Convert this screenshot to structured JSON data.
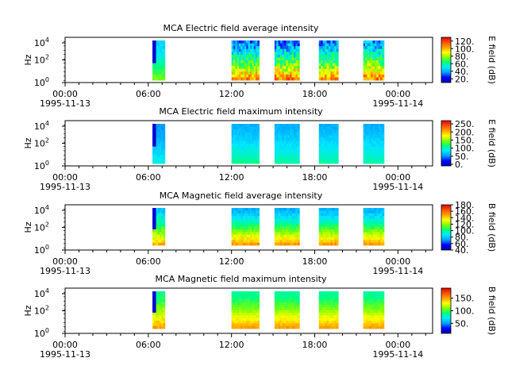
{
  "figure": {
    "x_tick_labels": [
      "00:00",
      "06:00",
      "12:00",
      "18:00",
      "00:00"
    ],
    "x_tick_hours": [
      0,
      6,
      12,
      18,
      24
    ],
    "x_date_labels": [
      {
        "at_hour": 0,
        "text": "1995-11-13"
      },
      {
        "at_hour": 24,
        "text": "1995-11-14"
      }
    ],
    "x_range_hours": [
      0,
      26.5
    ],
    "colorscale": [
      "#0000b0",
      "#0000ff",
      "#00a0ff",
      "#00e8ff",
      "#00ff80",
      "#80ff00",
      "#ffff00",
      "#ffa000",
      "#ff5000",
      "#e00000"
    ]
  },
  "chart_data": [
    {
      "type": "heatmap",
      "title": "MCA  Electric field average intensity",
      "ylabel": "Hz",
      "y_tick_labels": [
        "10",
        "10",
        "10"
      ],
      "y_tick_exponents": [
        "0",
        "2",
        "4"
      ],
      "y_scale": "log",
      "colorbar_label": "E field (dB)",
      "colorbar_ticks": [
        "20.",
        "40.",
        "60.",
        "80.",
        "100.",
        "120."
      ],
      "colorbar_range": [
        10,
        130
      ],
      "time_blocks": [
        {
          "start": 6.3,
          "end": 7.2,
          "low": 45,
          "high": 75,
          "speckle": 0.6
        },
        {
          "start": 12.0,
          "end": 14.0,
          "low": 35,
          "high": 105,
          "speckle": 0.9
        },
        {
          "start": 15.1,
          "end": 16.9,
          "low": 35,
          "high": 110,
          "speckle": 0.9
        },
        {
          "start": 18.3,
          "end": 19.7,
          "low": 35,
          "high": 105,
          "speckle": 0.9
        },
        {
          "start": 21.5,
          "end": 23.0,
          "low": 40,
          "high": 110,
          "speckle": 0.9
        }
      ]
    },
    {
      "type": "heatmap",
      "title": "MCA  Electric field maximum intensity",
      "ylabel": "Hz",
      "y_tick_labels": [
        "10",
        "10",
        "10"
      ],
      "y_tick_exponents": [
        "0",
        "2",
        "4"
      ],
      "y_scale": "log",
      "colorbar_label": "E field (dB)",
      "colorbar_ticks": [
        "0.",
        "50.",
        "100.",
        "150.",
        "200.",
        "250."
      ],
      "colorbar_range": [
        -10,
        270
      ],
      "time_blocks": [
        {
          "start": 6.3,
          "end": 7.2,
          "low": 50,
          "high": 90,
          "speckle": 0.6
        },
        {
          "start": 12.0,
          "end": 14.0,
          "low": 60,
          "high": 110,
          "speckle": 0.6
        },
        {
          "start": 15.1,
          "end": 16.9,
          "low": 60,
          "high": 105,
          "speckle": 0.6
        },
        {
          "start": 18.3,
          "end": 19.7,
          "low": 60,
          "high": 105,
          "speckle": 0.6
        },
        {
          "start": 21.5,
          "end": 23.0,
          "low": 60,
          "high": 105,
          "speckle": 0.6
        }
      ]
    },
    {
      "type": "heatmap",
      "title": "MCA  Magnetic field average intensity",
      "ylabel": "Hz",
      "y_tick_labels": [
        "10",
        "10",
        "10"
      ],
      "y_tick_exponents": [
        "0",
        "2",
        "4"
      ],
      "y_scale": "log",
      "colorbar_label": "B field (dB)",
      "colorbar_ticks": [
        "40.",
        "60.",
        "80.",
        "100.",
        "120.",
        "140.",
        "160.",
        "180."
      ],
      "colorbar_range": [
        40,
        180
      ],
      "time_blocks": [
        {
          "start": 6.3,
          "end": 7.2,
          "low": 80,
          "high": 145,
          "speckle": 0.5
        },
        {
          "start": 12.0,
          "end": 14.0,
          "low": 75,
          "high": 150,
          "speckle": 0.3
        },
        {
          "start": 15.1,
          "end": 16.9,
          "low": 75,
          "high": 150,
          "speckle": 0.3
        },
        {
          "start": 18.3,
          "end": 19.7,
          "low": 75,
          "high": 150,
          "speckle": 0.3
        },
        {
          "start": 21.5,
          "end": 23.0,
          "low": 75,
          "high": 150,
          "speckle": 0.3
        }
      ]
    },
    {
      "type": "heatmap",
      "title": "MCA  Magnetic field maximum intensity",
      "ylabel": "Hz",
      "y_tick_labels": [
        "10",
        "10",
        "10"
      ],
      "y_tick_exponents": [
        "0",
        "2",
        "4"
      ],
      "y_scale": "log",
      "colorbar_label": "B field (dB)",
      "colorbar_ticks": [
        "50.",
        "100.",
        "150."
      ],
      "colorbar_range": [
        10,
        190
      ],
      "time_blocks": [
        {
          "start": 6.3,
          "end": 7.2,
          "low": 85,
          "high": 150,
          "speckle": 0.5
        },
        {
          "start": 12.0,
          "end": 14.0,
          "low": 85,
          "high": 150,
          "speckle": 0.3
        },
        {
          "start": 15.1,
          "end": 16.9,
          "low": 85,
          "high": 150,
          "speckle": 0.3
        },
        {
          "start": 18.3,
          "end": 19.7,
          "low": 85,
          "high": 150,
          "speckle": 0.3
        },
        {
          "start": 21.5,
          "end": 23.0,
          "low": 85,
          "high": 150,
          "speckle": 0.3
        }
      ]
    }
  ]
}
